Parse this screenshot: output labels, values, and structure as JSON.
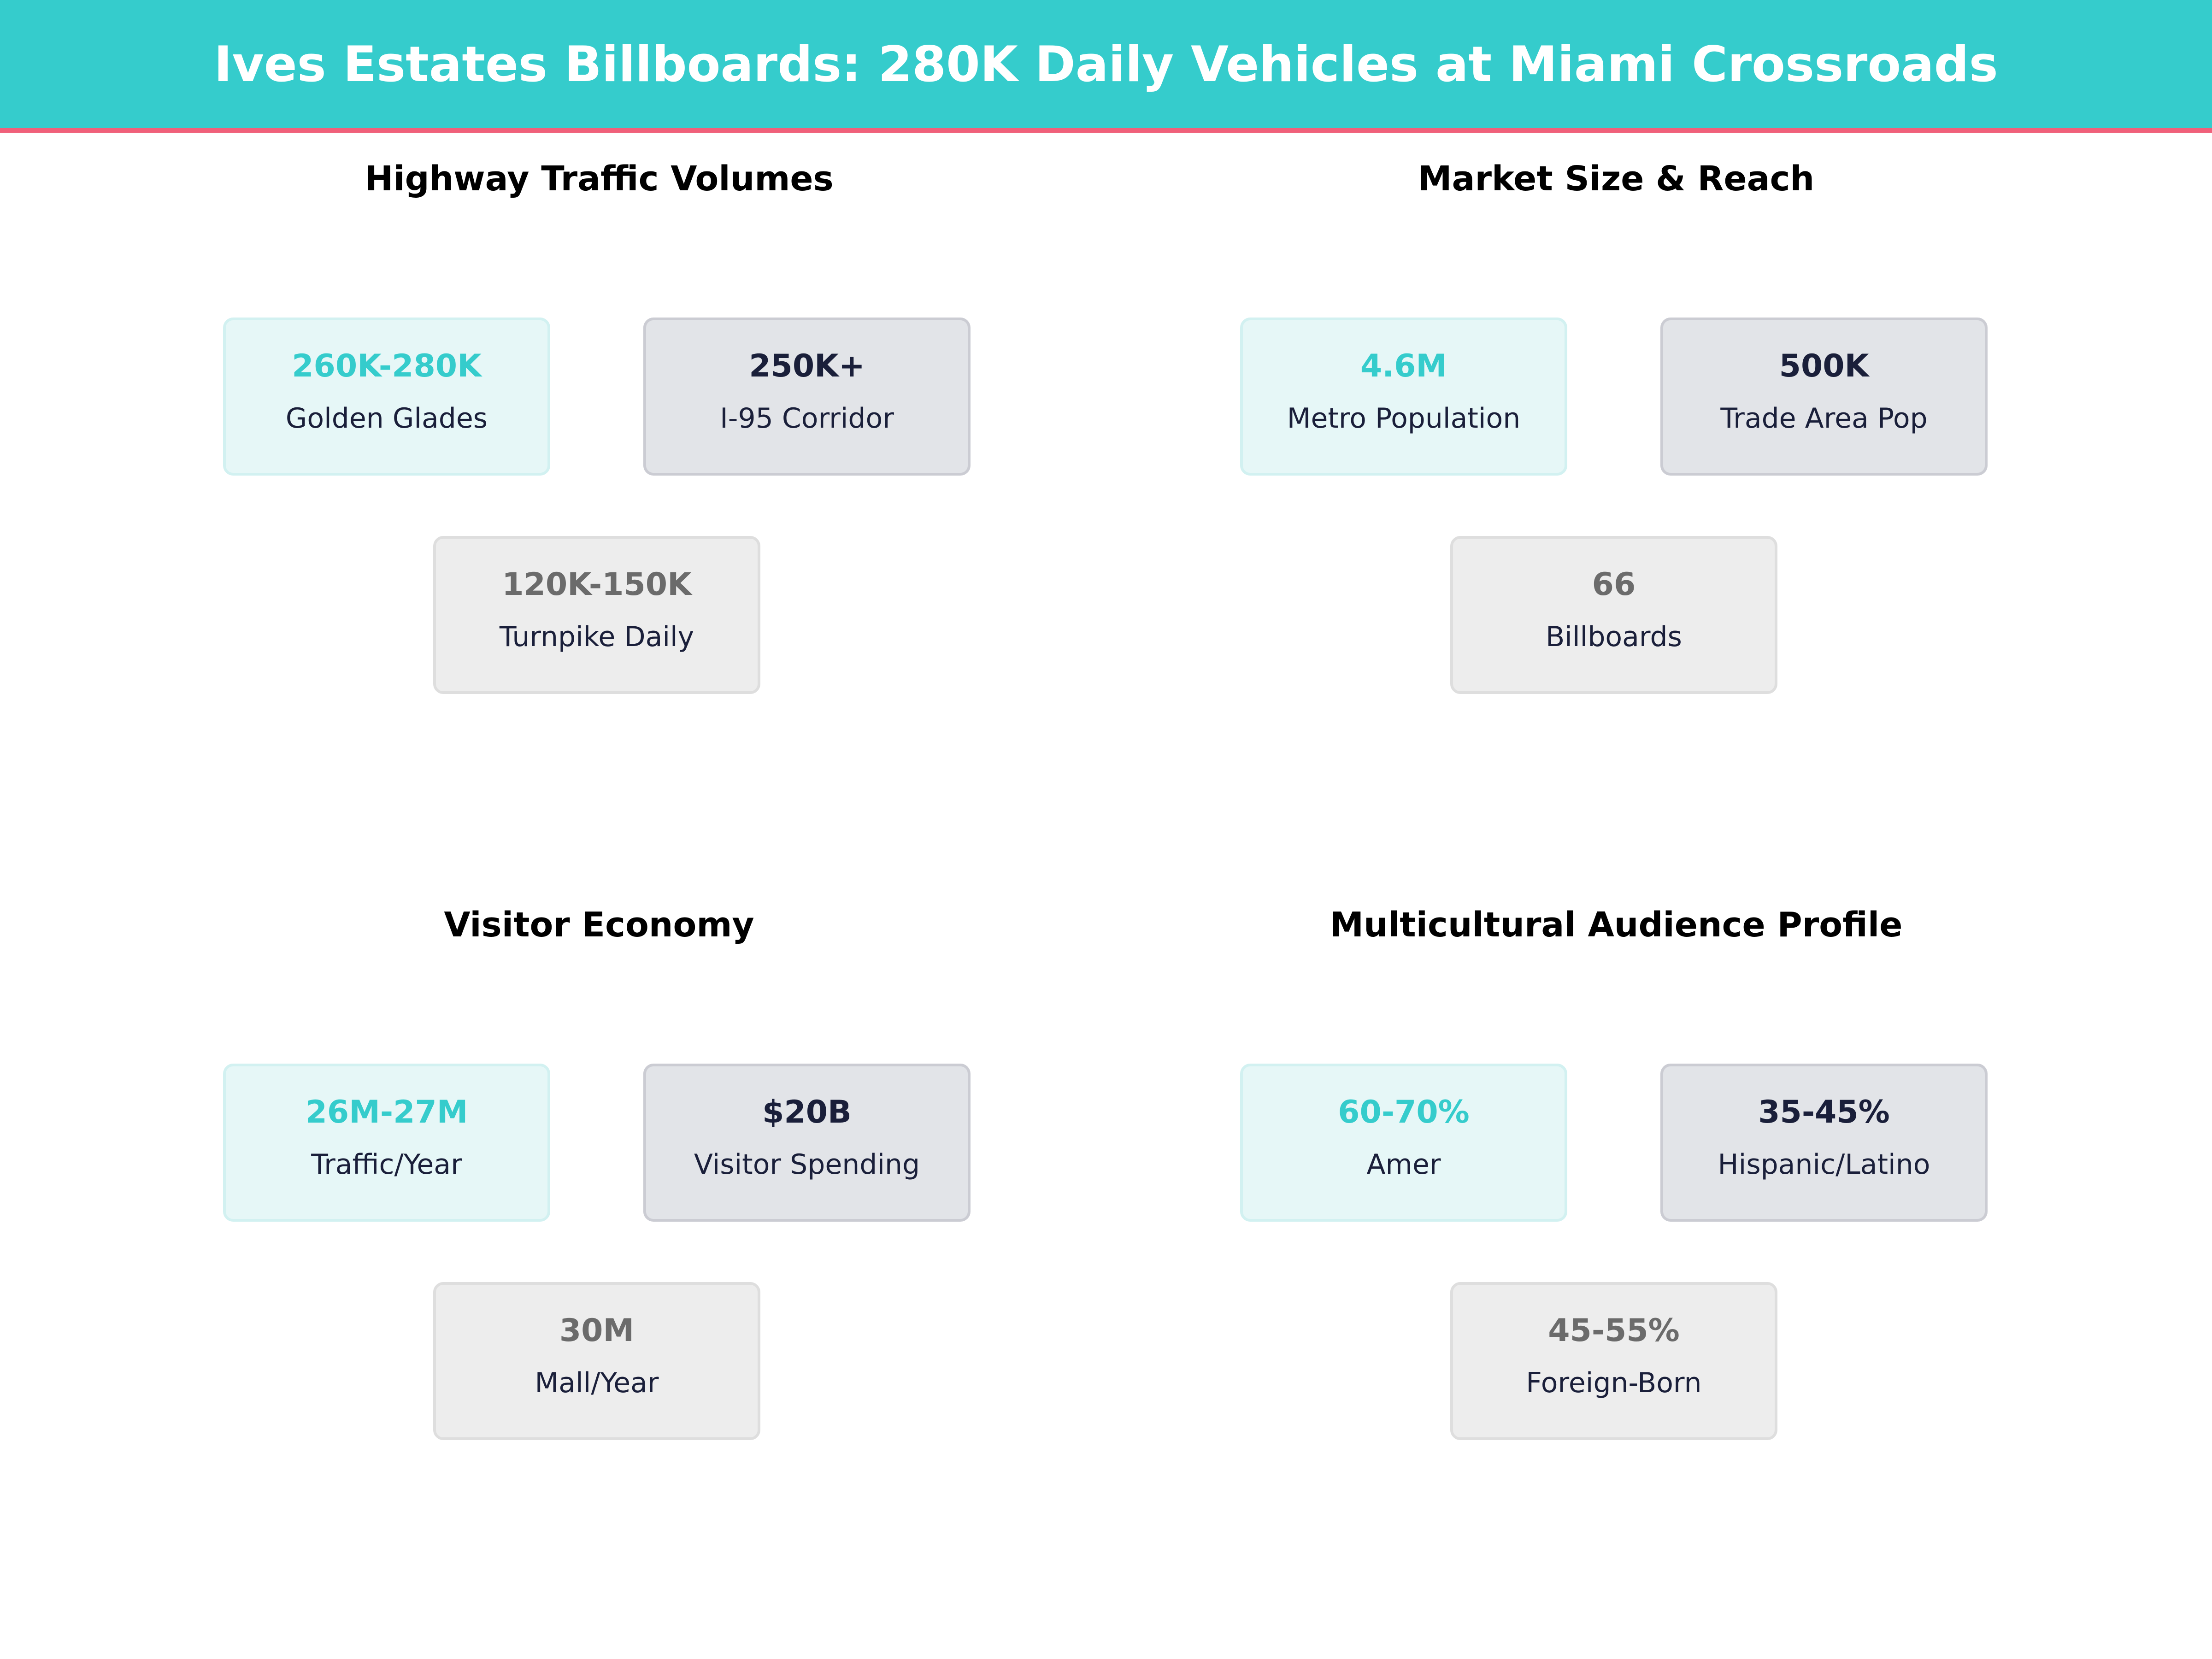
{
  "title": "Ives Estates Billboards: 280K Daily Vehicles at Miami Crossroads",
  "colors": {
    "header": "#35CCCC",
    "accent_stripe": "#F0607A",
    "primary": "#35CCCC",
    "secondary": "#1A1F3A",
    "tertiary": "#6B6B6B"
  },
  "panels": [
    {
      "title": "Highway Traffic Volumes",
      "cards": [
        {
          "value": "260K-280K",
          "label": "Golden Glades"
        },
        {
          "value": "250K+",
          "label": "I-95 Corridor"
        },
        {
          "value": "120K-150K",
          "label": "Turnpike Daily"
        }
      ]
    },
    {
      "title": "Market Size & Reach",
      "cards": [
        {
          "value": "4.6M",
          "label": "Metro Population"
        },
        {
          "value": "500K",
          "label": "Trade Area Pop"
        },
        {
          "value": "66",
          "label": "Billboards"
        }
      ]
    },
    {
      "title": "Visitor Economy",
      "cards": [
        {
          "value": "26M-27M",
          "label": "Traffic/Year"
        },
        {
          "value": "$20B",
          "label": "Visitor Spending"
        },
        {
          "value": "30M",
          "label": "Mall/Year"
        }
      ]
    },
    {
      "title": "Multicultural Audience Profile",
      "cards": [
        {
          "value": "60-70%",
          "label": "Amer"
        },
        {
          "value": "35-45%",
          "label": "Hispanic/Latino"
        },
        {
          "value": "45-55%",
          "label": "Foreign-Born"
        }
      ]
    }
  ]
}
